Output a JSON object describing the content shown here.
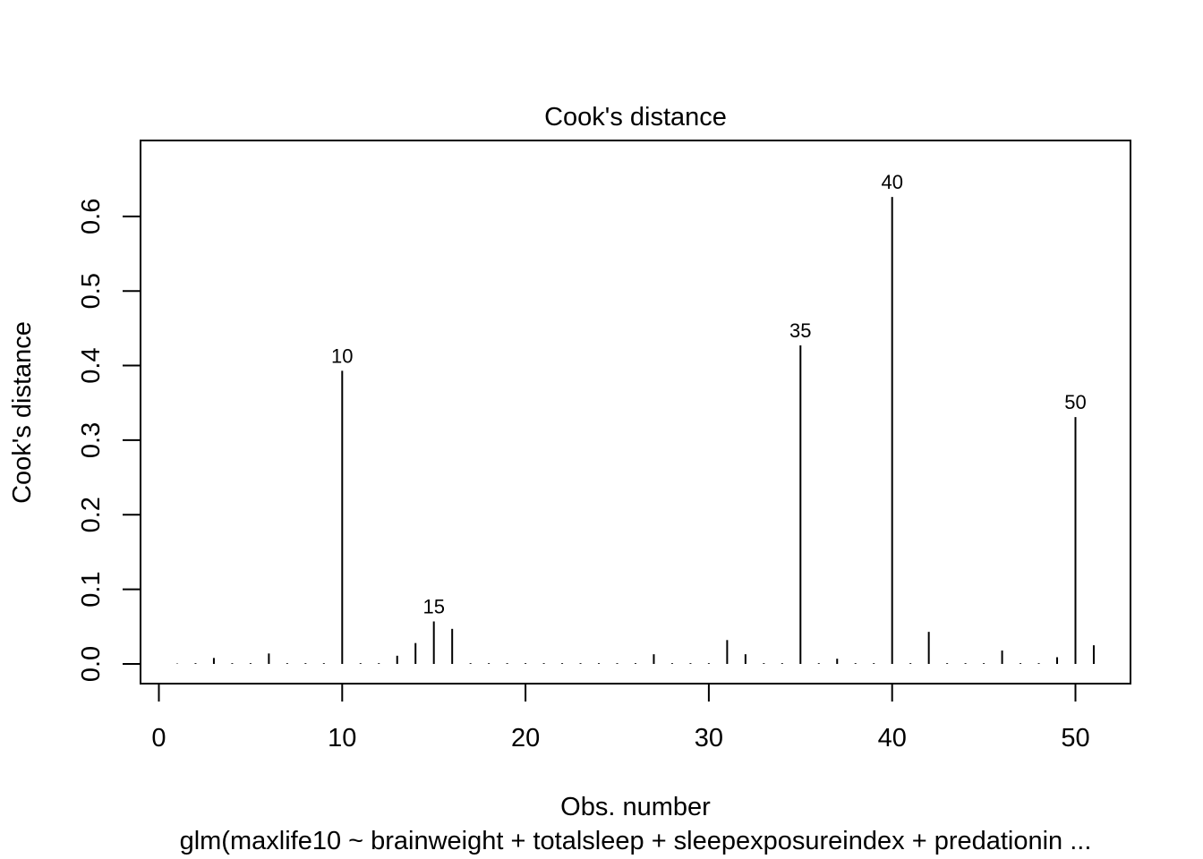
{
  "chart_data": {
    "type": "bar",
    "title": "Cook's distance",
    "xlabel": "Obs. number",
    "ylabel": "Cook's distance",
    "subtitle": "glm(maxlife10 ~ brainweight + totalsleep + sleepexposureindex + predationin ...",
    "xlim": [
      0,
      52
    ],
    "ylim": [
      0,
      0.65
    ],
    "x_ticks": [
      "0",
      "10",
      "20",
      "30",
      "40",
      "50"
    ],
    "y_ticks": [
      "0.0",
      "0.1",
      "0.2",
      "0.3",
      "0.4",
      "0.5",
      "0.6"
    ],
    "grid": false,
    "x": [
      1,
      2,
      3,
      4,
      5,
      6,
      7,
      8,
      9,
      10,
      11,
      12,
      13,
      14,
      15,
      16,
      17,
      18,
      19,
      20,
      21,
      22,
      23,
      24,
      25,
      26,
      27,
      28,
      29,
      30,
      31,
      32,
      33,
      34,
      35,
      36,
      37,
      38,
      39,
      40,
      41,
      42,
      43,
      44,
      45,
      46,
      47,
      48,
      49,
      50,
      51
    ],
    "values": [
      0.0005,
      0.001,
      0.008,
      0.001,
      0.001,
      0.014,
      0.001,
      0.001,
      0.001,
      0.393,
      0.001,
      0.001,
      0.011,
      0.028,
      0.057,
      0.047,
      0.001,
      0.001,
      0.001,
      0.001,
      0.001,
      0.001,
      0.001,
      0.001,
      0.001,
      0.001,
      0.013,
      0.001,
      0.001,
      0.001,
      0.032,
      0.013,
      0.001,
      0.001,
      0.427,
      0.001,
      0.007,
      0.001,
      0.001,
      0.626,
      0.001,
      0.043,
      0.001,
      0.001,
      0.001,
      0.018,
      0.001,
      0.001,
      0.009,
      0.331,
      0.025
    ],
    "labeled_points": [
      {
        "label": "10",
        "x": 10
      },
      {
        "label": "15",
        "x": 15
      },
      {
        "label": "35",
        "x": 35
      },
      {
        "label": "40",
        "x": 40
      },
      {
        "label": "50",
        "x": 50
      }
    ]
  }
}
